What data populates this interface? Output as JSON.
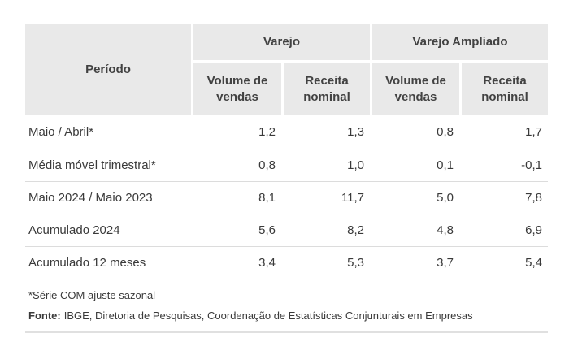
{
  "colors": {
    "header_background": "#e9e9e9",
    "header_text": "#424242",
    "body_text": "#3a3a3a",
    "divider": "#dcdcdc",
    "page_background": "#ffffff"
  },
  "table": {
    "header": {
      "period_label": "Período",
      "groups": [
        {
          "label": "Varejo",
          "columns": [
            "Volume de vendas",
            "Receita nominal"
          ]
        },
        {
          "label": "Varejo Ampliado",
          "columns": [
            "Volume de vendas",
            "Receita nominal"
          ]
        }
      ]
    },
    "rows": [
      {
        "period": "Maio / Abril*",
        "values": [
          "1,2",
          "1,3",
          "0,8",
          "1,7"
        ]
      },
      {
        "period": "Média móvel trimestral*",
        "values": [
          "0,8",
          "1,0",
          "0,1",
          "-0,1"
        ]
      },
      {
        "period": "Maio 2024 / Maio 2023",
        "values": [
          "8,1",
          "11,7",
          "5,0",
          "7,8"
        ]
      },
      {
        "period": "Acumulado 2024",
        "values": [
          "5,6",
          "8,2",
          "4,8",
          "6,9"
        ]
      },
      {
        "period": "Acumulado 12 meses",
        "values": [
          "3,4",
          "5,3",
          "3,7",
          "5,4"
        ]
      }
    ],
    "footnote": "*Série COM ajuste sazonal",
    "source_label": "Fonte:",
    "source_text": "IBGE, Diretoria de Pesquisas, Coordenação de Estatísticas Conjunturais em Empresas"
  },
  "chart_data": {
    "type": "table",
    "column_groups": [
      "Varejo",
      "Varejo Ampliado"
    ],
    "columns": [
      "Período",
      "Varejo - Volume de vendas",
      "Varejo - Receita nominal",
      "Varejo Ampliado - Volume de vendas",
      "Varejo Ampliado - Receita nominal"
    ],
    "rows": [
      [
        "Maio / Abril*",
        1.2,
        1.3,
        0.8,
        1.7
      ],
      [
        "Média móvel trimestral*",
        0.8,
        1.0,
        0.1,
        -0.1
      ],
      [
        "Maio 2024 / Maio 2023",
        8.1,
        11.7,
        5.0,
        7.8
      ],
      [
        "Acumulado 2024",
        5.6,
        8.2,
        4.8,
        6.9
      ],
      [
        "Acumulado 12 meses",
        3.4,
        5.3,
        3.7,
        5.4
      ]
    ],
    "footnote": "*Série COM ajuste sazonal",
    "source": "Fonte: IBGE, Diretoria de Pesquisas, Coordenação de Estatísticas Conjunturais em Empresas"
  }
}
